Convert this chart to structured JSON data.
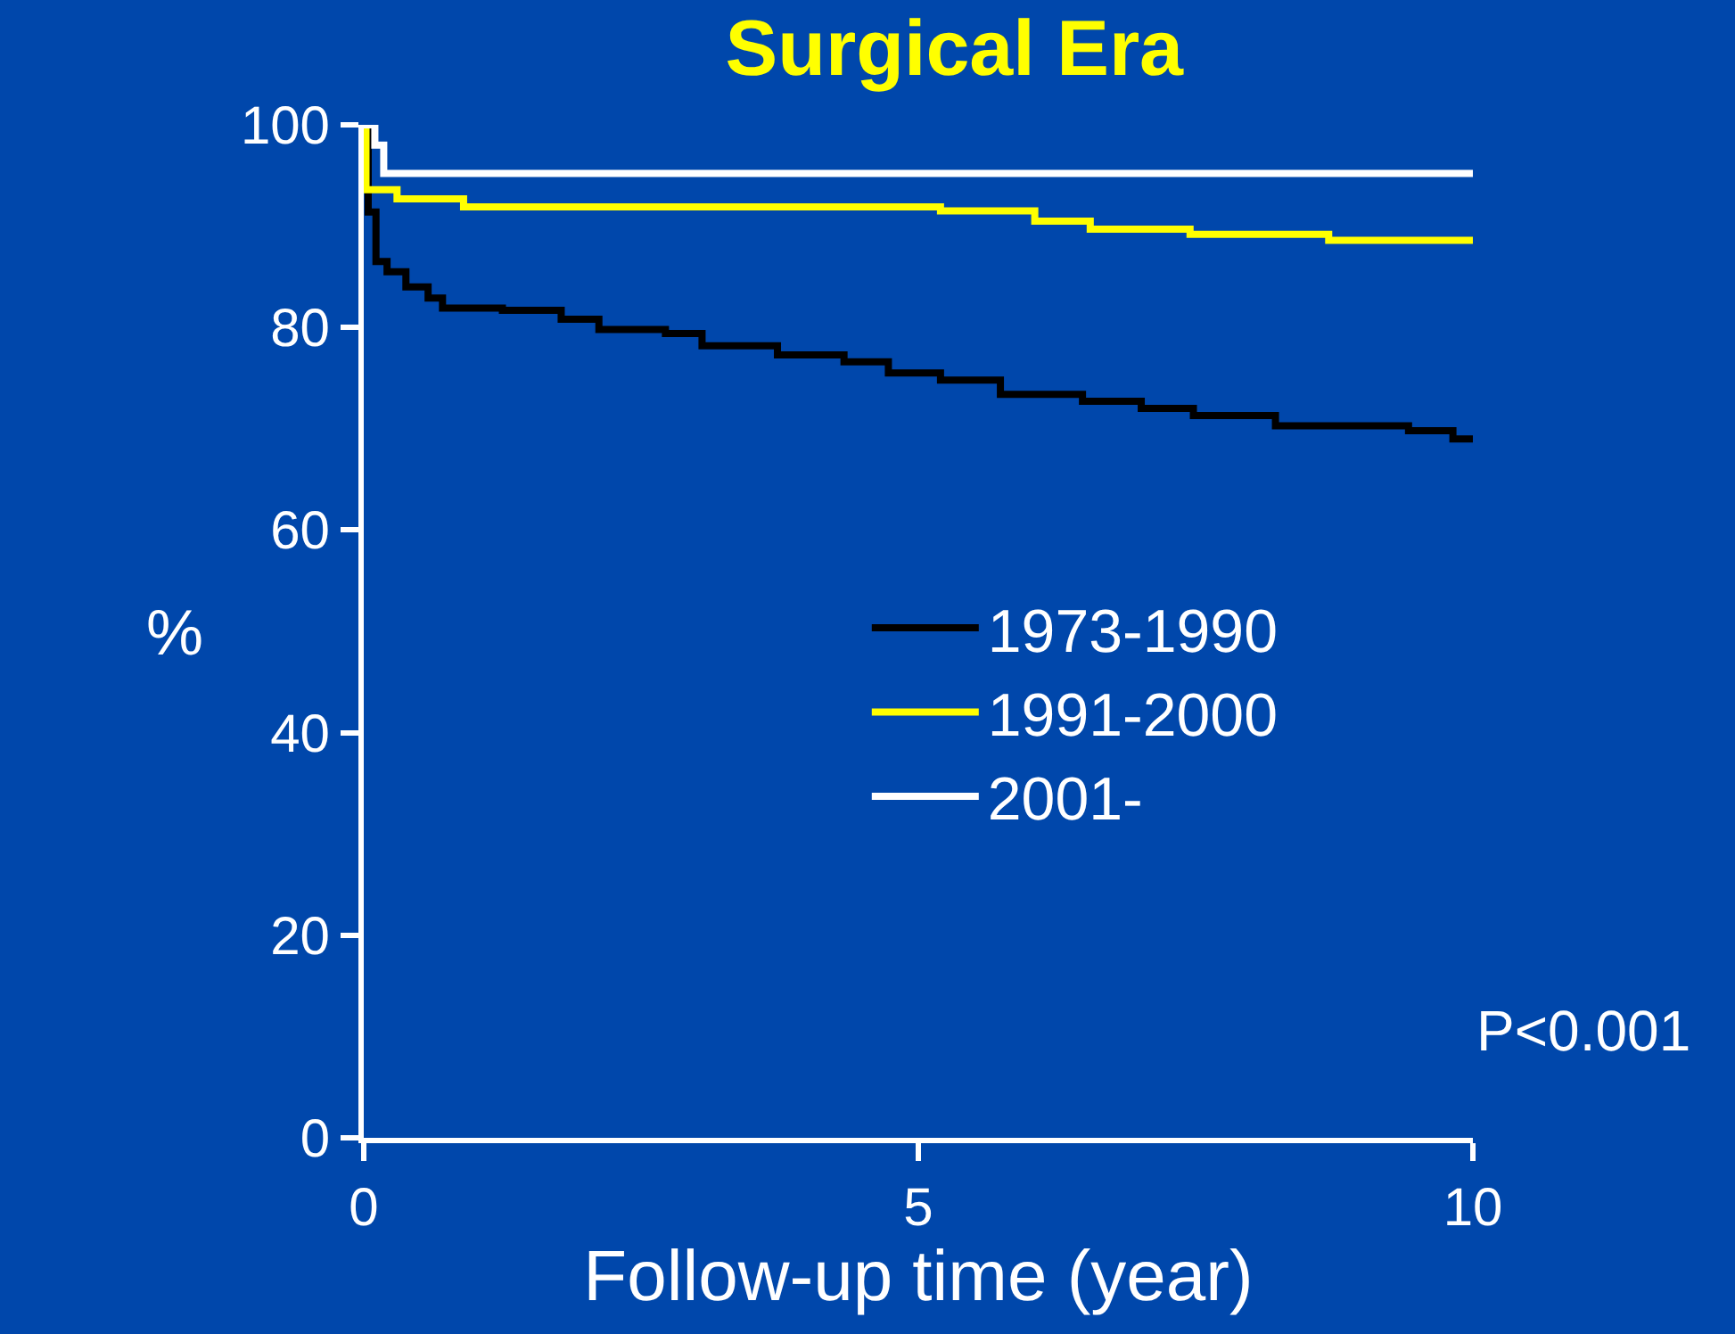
{
  "chart_data": {
    "type": "step",
    "title": "Surgical Era",
    "xlabel": "Follow-up time (year)",
    "ylabel": "%",
    "xlim": [
      0,
      10
    ],
    "xticks": [
      0,
      5,
      10
    ],
    "ylim": [
      0,
      100
    ],
    "yticks": [
      0,
      20,
      40,
      60,
      80,
      100
    ],
    "grid": false,
    "legend": "right",
    "marker": "none",
    "line_style": "solid",
    "annotations": [
      "P<0.001"
    ],
    "series": [
      {
        "name": "1973-1990",
        "color": "#000000",
        "x": [
          0,
          0.04,
          0.11,
          0.21,
          0.38,
          0.58,
          0.71,
          1.25,
          1.78,
          2.12,
          2.72,
          3.05,
          3.73,
          4.33,
          4.73,
          5.2,
          5.74,
          6.48,
          7.01,
          7.48,
          8.22,
          9.42,
          9.82,
          10
        ],
        "values": [
          100,
          91.4,
          86.5,
          85.5,
          84,
          82.9,
          81.9,
          81.7,
          80.8,
          79.8,
          79.4,
          78.2,
          77.3,
          76.6,
          75.5,
          74.8,
          73.4,
          72.7,
          72,
          71.3,
          70.3,
          69.8,
          69,
          69
        ]
      },
      {
        "name": "1991-2000",
        "color": "#ffff00",
        "x": [
          0,
          0.02,
          0.3,
          0.9,
          5.2,
          6.05,
          6.55,
          7.45,
          8.7,
          10
        ],
        "values": [
          100,
          93.6,
          92.7,
          91.9,
          91.5,
          90.5,
          89.7,
          89.2,
          88.6,
          88.6
        ]
      },
      {
        "name": "2001-",
        "color": "#ffffff",
        "x": [
          0,
          0.1,
          0.18,
          10
        ],
        "values": [
          100,
          98,
          95.2,
          95.2
        ]
      }
    ]
  }
}
